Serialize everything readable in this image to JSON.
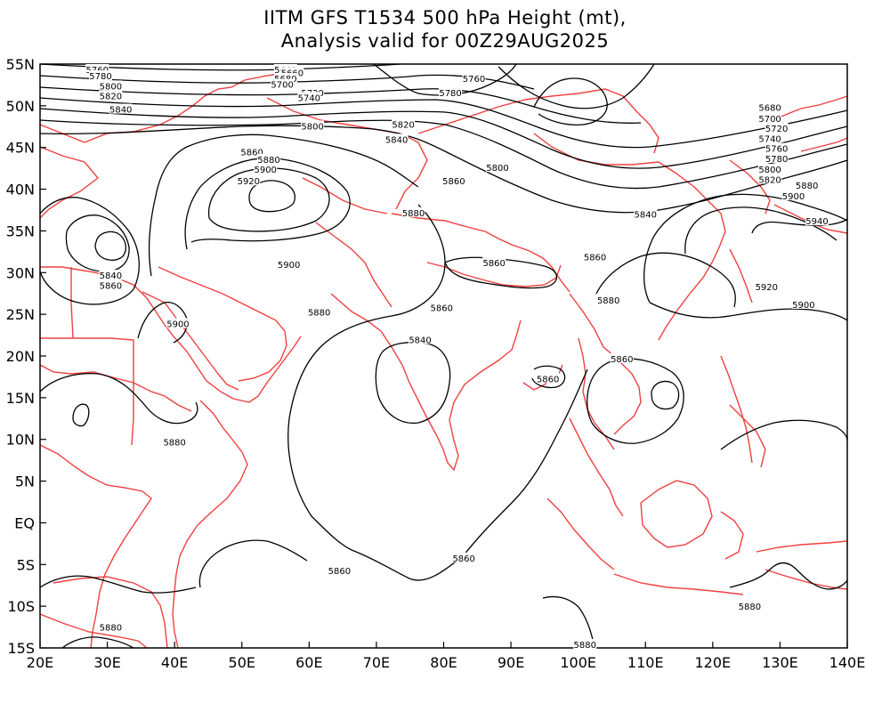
{
  "title": {
    "line1": "IITM GFS T1534 500 hPa Height (mt),",
    "line2": "Analysis valid for 00Z29AUG2025"
  },
  "colors": {
    "contour": "#000000",
    "coastline": "#f04040",
    "background": "#ffffff"
  },
  "map": {
    "projection": "lat-lon",
    "lon_range": [
      20,
      140
    ],
    "lat_range": [
      -15,
      55
    ],
    "lon_ticks": [
      {
        "value": 20,
        "label": "20E"
      },
      {
        "value": 30,
        "label": "30E"
      },
      {
        "value": 40,
        "label": "40E"
      },
      {
        "value": 50,
        "label": "50E"
      },
      {
        "value": 60,
        "label": "60E"
      },
      {
        "value": 70,
        "label": "70E"
      },
      {
        "value": 80,
        "label": "80E"
      },
      {
        "value": 90,
        "label": "90E"
      },
      {
        "value": 100,
        "label": "100E"
      },
      {
        "value": 110,
        "label": "110E"
      },
      {
        "value": 120,
        "label": "120E"
      },
      {
        "value": 130,
        "label": "130E"
      },
      {
        "value": 140,
        "label": "140E"
      }
    ],
    "lat_ticks": [
      {
        "value": 55,
        "label": "55N"
      },
      {
        "value": 50,
        "label": "50N"
      },
      {
        "value": 45,
        "label": "45N"
      },
      {
        "value": 40,
        "label": "40N"
      },
      {
        "value": 35,
        "label": "35N"
      },
      {
        "value": 30,
        "label": "30N"
      },
      {
        "value": 25,
        "label": "25N"
      },
      {
        "value": 20,
        "label": "20N"
      },
      {
        "value": 15,
        "label": "15N"
      },
      {
        "value": 10,
        "label": "10N"
      },
      {
        "value": 5,
        "label": "5N"
      },
      {
        "value": 0,
        "label": "EQ"
      },
      {
        "value": -5,
        "label": "5S"
      },
      {
        "value": -10,
        "label": "10S"
      },
      {
        "value": -15,
        "label": "15S"
      }
    ],
    "contour_labels": [
      {
        "text": "5760",
        "lon": 28.5,
        "lat": 54.8
      },
      {
        "text": "5780",
        "lon": 29.0,
        "lat": 53.6
      },
      {
        "text": "5800",
        "lon": 30.5,
        "lat": 52.4
      },
      {
        "text": "5820",
        "lon": 30.5,
        "lat": 51.2
      },
      {
        "text": "5840",
        "lon": 32.0,
        "lat": 49.6
      },
      {
        "text": "5640",
        "lon": 56.5,
        "lat": 54.6
      },
      {
        "text": "5660",
        "lon": 57.5,
        "lat": 54.0
      },
      {
        "text": "5680",
        "lon": 56.5,
        "lat": 53.3
      },
      {
        "text": "5700",
        "lon": 56.0,
        "lat": 52.6
      },
      {
        "text": "5720",
        "lon": 60.5,
        "lat": 51.6
      },
      {
        "text": "5740",
        "lon": 60.0,
        "lat": 51.0
      },
      {
        "text": "5760",
        "lon": 84.5,
        "lat": 53.3
      },
      {
        "text": "5780",
        "lon": 81.0,
        "lat": 51.6
      },
      {
        "text": "5800",
        "lon": 60.5,
        "lat": 47.6
      },
      {
        "text": "5820",
        "lon": 74.0,
        "lat": 47.8
      },
      {
        "text": "5840",
        "lon": 73.0,
        "lat": 46.0
      },
      {
        "text": "5860",
        "lon": 51.5,
        "lat": 44.5
      },
      {
        "text": "5880",
        "lon": 54.0,
        "lat": 43.6
      },
      {
        "text": "5900",
        "lon": 53.5,
        "lat": 42.4
      },
      {
        "text": "5920",
        "lon": 51.0,
        "lat": 41.0
      },
      {
        "text": "5860",
        "lon": 81.5,
        "lat": 41.0
      },
      {
        "text": "5880",
        "lon": 75.5,
        "lat": 37.2
      },
      {
        "text": "5800",
        "lon": 88.0,
        "lat": 42.6
      },
      {
        "text": "5840",
        "lon": 110.0,
        "lat": 37.0
      },
      {
        "text": "5860",
        "lon": 102.5,
        "lat": 31.9
      },
      {
        "text": "5860",
        "lon": 87.5,
        "lat": 31.2
      },
      {
        "text": "5900",
        "lon": 57.0,
        "lat": 31.0
      },
      {
        "text": "5840",
        "lon": 30.5,
        "lat": 29.7
      },
      {
        "text": "5860",
        "lon": 30.5,
        "lat": 28.5
      },
      {
        "text": "5900",
        "lon": 40.5,
        "lat": 23.9
      },
      {
        "text": "5880",
        "lon": 61.5,
        "lat": 25.3
      },
      {
        "text": "5860",
        "lon": 79.7,
        "lat": 25.8
      },
      {
        "text": "5840",
        "lon": 76.5,
        "lat": 22.0
      },
      {
        "text": "5680",
        "lon": 128.5,
        "lat": 49.8
      },
      {
        "text": "5700",
        "lon": 128.5,
        "lat": 48.5
      },
      {
        "text": "5720",
        "lon": 129.5,
        "lat": 47.3
      },
      {
        "text": "5740",
        "lon": 128.5,
        "lat": 46.1
      },
      {
        "text": "5760",
        "lon": 129.5,
        "lat": 44.9
      },
      {
        "text": "5780",
        "lon": 129.5,
        "lat": 43.7
      },
      {
        "text": "5800",
        "lon": 128.5,
        "lat": 42.4
      },
      {
        "text": "5820",
        "lon": 128.5,
        "lat": 41.2
      },
      {
        "text": "5880",
        "lon": 134.0,
        "lat": 40.5
      },
      {
        "text": "5900",
        "lon": 132.0,
        "lat": 39.2
      },
      {
        "text": "5940",
        "lon": 135.5,
        "lat": 36.2
      },
      {
        "text": "5920",
        "lon": 128.0,
        "lat": 28.3
      },
      {
        "text": "5900",
        "lon": 133.5,
        "lat": 26.2
      },
      {
        "text": "5880",
        "lon": 104.5,
        "lat": 26.7
      },
      {
        "text": "5860",
        "lon": 106.5,
        "lat": 19.7
      },
      {
        "text": "5860",
        "lon": 95.5,
        "lat": 17.3
      },
      {
        "text": "5880",
        "lon": 40.0,
        "lat": 9.7
      },
      {
        "text": "5860",
        "lon": 64.5,
        "lat": -5.7
      },
      {
        "text": "5860",
        "lon": 83.0,
        "lat": -4.2
      },
      {
        "text": "5880",
        "lon": 30.5,
        "lat": -12.5
      },
      {
        "text": "5880",
        "lon": 125.5,
        "lat": -10.0
      },
      {
        "text": "5880",
        "lon": 101.0,
        "lat": -17.5
      }
    ]
  }
}
